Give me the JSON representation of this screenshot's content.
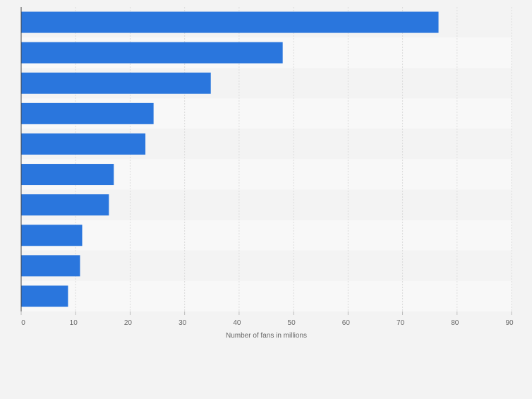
{
  "chart_data": {
    "type": "bar",
    "orientation": "horizontal",
    "title": "",
    "xlabel": "Number of fans in millions",
    "ylabel": "",
    "xlim": [
      0,
      90
    ],
    "xticks": [
      "0",
      "10",
      "20",
      "30",
      "40",
      "50",
      "60",
      "70",
      "80",
      "90"
    ],
    "categories": [
      "",
      "",
      "",
      "",
      "",
      "",
      "",
      "",
      "",
      ""
    ],
    "values": [
      76.6,
      48.0,
      34.8,
      24.3,
      22.8,
      17.0,
      16.1,
      11.2,
      10.8,
      8.6
    ],
    "grid": true,
    "legend": "none",
    "bar_color": "#2a76dd",
    "band_colors": [
      "#f3f3f3",
      "#f8f8f8"
    ],
    "background": "#f3f3f3"
  }
}
